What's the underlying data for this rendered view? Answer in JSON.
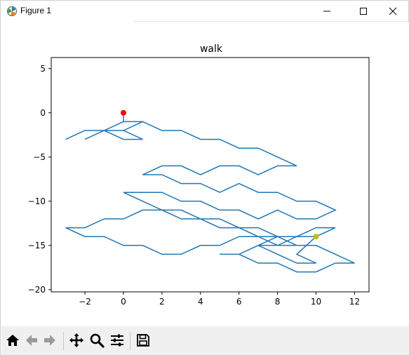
{
  "window": {
    "title": "Figure 1",
    "controls": {
      "minimize_icon": "minimize-icon",
      "maximize_icon": "maximize-icon",
      "close_icon": "close-icon"
    }
  },
  "toolbar": {
    "buttons": [
      {
        "icon": "home-icon"
      },
      {
        "icon": "back-arrow-icon"
      },
      {
        "icon": "forward-arrow-icon"
      },
      {
        "icon": "pan-icon"
      },
      {
        "icon": "zoom-icon"
      },
      {
        "icon": "configure-subplots-icon"
      },
      {
        "icon": "save-icon"
      }
    ]
  },
  "chart_data": {
    "type": "line",
    "title": "walk",
    "xlabel": "",
    "ylabel": "",
    "xlim": [
      -3.75,
      12.75
    ],
    "ylim": [
      -20.25,
      6.25
    ],
    "xticks": [
      -2,
      0,
      2,
      4,
      6,
      8,
      10,
      12
    ],
    "yticks": [
      5,
      0,
      -5,
      -10,
      -15,
      -20
    ],
    "xtick_labels": [
      "−2",
      "0",
      "2",
      "4",
      "6",
      "8",
      "10",
      "12"
    ],
    "ytick_labels": [
      "5",
      "0",
      "−5",
      "−10",
      "−15",
      "−20"
    ],
    "grid": false,
    "line_color": "#1f77b4",
    "start_point": {
      "x": 0,
      "y": 0,
      "color": "#ff0000"
    },
    "end_point": {
      "x": 10,
      "y": -14,
      "color": "#bcbd22"
    },
    "x": [
      0,
      0,
      1,
      0,
      -1,
      -2,
      -1,
      0,
      1,
      0,
      -1,
      -2,
      -3,
      -2,
      -1,
      0,
      1,
      2,
      3,
      4,
      5,
      6,
      7,
      8,
      9,
      8,
      7,
      6,
      5,
      4,
      3,
      2,
      1,
      2,
      3,
      4,
      5,
      6,
      7,
      8,
      9,
      10,
      11,
      10,
      9,
      8,
      7,
      6,
      5,
      4,
      3,
      2,
      1,
      0,
      1,
      2,
      3,
      4,
      5,
      6,
      7,
      8,
      9,
      8,
      7,
      6,
      5,
      4,
      3,
      2,
      1,
      0,
      -1,
      -2,
      -3,
      -2,
      -1,
      0,
      1,
      2,
      3,
      4,
      5,
      6,
      7,
      8,
      9,
      10,
      11,
      12,
      11,
      10,
      9,
      8,
      7,
      6,
      5,
      6,
      7,
      8,
      9,
      10,
      11,
      10,
      9,
      8,
      7,
      8,
      9,
      10,
      9,
      10
    ],
    "y": [
      0,
      -1,
      -1,
      -2,
      -2,
      -3,
      -2,
      -2,
      -3,
      -3,
      -2,
      -2,
      -3,
      -2,
      -2,
      -1,
      -1,
      -2,
      -2,
      -3,
      -3,
      -4,
      -4,
      -5,
      -6,
      -6,
      -7,
      -6,
      -6,
      -7,
      -6,
      -6,
      -7,
      -7,
      -8,
      -8,
      -9,
      -8,
      -9,
      -9,
      -10,
      -10,
      -11,
      -12,
      -12,
      -11,
      -12,
      -11,
      -11,
      -10,
      -10,
      -9,
      -9,
      -9,
      -10,
      -11,
      -11,
      -12,
      -12,
      -13,
      -13,
      -14,
      -15,
      -15,
      -14,
      -14,
      -15,
      -15,
      -16,
      -16,
      -15,
      -15,
      -14,
      -14,
      -13,
      -13,
      -12,
      -12,
      -11,
      -11,
      -12,
      -12,
      -13,
      -13,
      -14,
      -14,
      -15,
      -15,
      -16,
      -17,
      -17,
      -18,
      -18,
      -17,
      -17,
      -16,
      -16,
      -16,
      -15,
      -15,
      -14,
      -14,
      -13,
      -13,
      -14,
      -14,
      -15,
      -16,
      -17,
      -17,
      -16,
      -14
    ]
  }
}
